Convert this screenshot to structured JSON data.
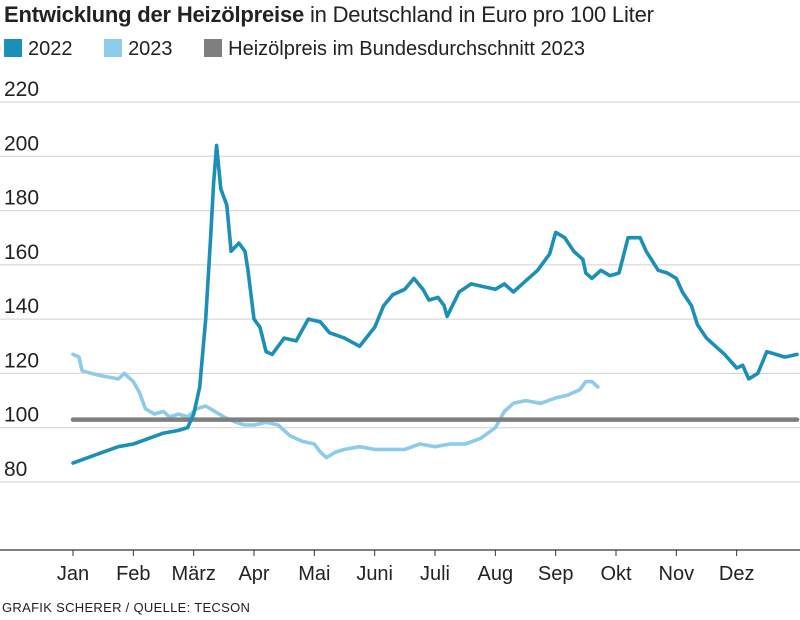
{
  "header": {
    "title_bold": "Entwicklung der Heizölpreise",
    "title_rest": " in Deutschland in Euro pro 100 Liter"
  },
  "legend": [
    {
      "label": "2022",
      "color": "#1b8fb8"
    },
    {
      "label": "2023",
      "color": "#8ccbe9"
    },
    {
      "label": "Heizölpreis im Bundesdurchschnitt 2023",
      "color": "#7f7f7f"
    }
  ],
  "footer": {
    "source": "GRAFIK SCHERER / QUELLE: TECSON"
  },
  "chart_data": {
    "type": "line",
    "title": "Entwicklung der Heizölpreise in Deutschland in Euro pro 100 Liter",
    "xlabel": "",
    "ylabel": "Euro pro 100 Liter",
    "x_unit": "month (0 = Jan 1, 12 = Dec 31)",
    "xlim": [
      0,
      12
    ],
    "ylim": [
      60,
      225
    ],
    "yticks": [
      80,
      100,
      120,
      140,
      160,
      180,
      200,
      220
    ],
    "month_labels": [
      "Jan",
      "Feb",
      "März",
      "Apr",
      "Mai",
      "Juni",
      "Juli",
      "Aug",
      "Sep",
      "Okt",
      "Nov",
      "Dez"
    ],
    "grid": "horizontal",
    "series": [
      {
        "name": "2022",
        "color": "#1b8fb8",
        "points": [
          [
            0.0,
            87
          ],
          [
            0.25,
            89
          ],
          [
            0.5,
            91
          ],
          [
            0.75,
            93
          ],
          [
            1.0,
            94
          ],
          [
            1.25,
            96
          ],
          [
            1.5,
            98
          ],
          [
            1.75,
            99
          ],
          [
            1.9,
            100
          ],
          [
            2.0,
            105
          ],
          [
            2.1,
            115
          ],
          [
            2.2,
            140
          ],
          [
            2.28,
            170
          ],
          [
            2.33,
            190
          ],
          [
            2.38,
            204
          ],
          [
            2.45,
            188
          ],
          [
            2.55,
            182
          ],
          [
            2.62,
            165
          ],
          [
            2.75,
            168
          ],
          [
            2.85,
            165
          ],
          [
            2.9,
            158
          ],
          [
            3.0,
            140
          ],
          [
            3.1,
            137
          ],
          [
            3.2,
            128
          ],
          [
            3.3,
            127
          ],
          [
            3.5,
            133
          ],
          [
            3.7,
            132
          ],
          [
            3.9,
            140
          ],
          [
            4.1,
            139
          ],
          [
            4.25,
            135
          ],
          [
            4.5,
            133
          ],
          [
            4.75,
            130
          ],
          [
            5.0,
            137
          ],
          [
            5.15,
            145
          ],
          [
            5.3,
            149
          ],
          [
            5.5,
            151
          ],
          [
            5.65,
            155
          ],
          [
            5.8,
            151
          ],
          [
            5.9,
            147
          ],
          [
            6.05,
            148
          ],
          [
            6.15,
            145
          ],
          [
            6.2,
            141
          ],
          [
            6.4,
            150
          ],
          [
            6.6,
            153
          ],
          [
            6.8,
            152
          ],
          [
            7.0,
            151
          ],
          [
            7.15,
            153
          ],
          [
            7.3,
            150
          ],
          [
            7.5,
            154
          ],
          [
            7.7,
            158
          ],
          [
            7.9,
            164
          ],
          [
            8.0,
            172
          ],
          [
            8.15,
            170
          ],
          [
            8.3,
            165
          ],
          [
            8.45,
            162
          ],
          [
            8.5,
            157
          ],
          [
            8.6,
            155
          ],
          [
            8.75,
            158
          ],
          [
            8.9,
            156
          ],
          [
            9.05,
            157
          ],
          [
            9.2,
            170
          ],
          [
            9.4,
            170
          ],
          [
            9.5,
            165
          ],
          [
            9.7,
            158
          ],
          [
            9.85,
            157
          ],
          [
            10.0,
            155
          ],
          [
            10.1,
            150
          ],
          [
            10.25,
            145
          ],
          [
            10.35,
            138
          ],
          [
            10.5,
            133
          ],
          [
            10.65,
            130
          ],
          [
            10.8,
            127
          ],
          [
            11.0,
            122
          ],
          [
            11.1,
            123
          ],
          [
            11.2,
            118
          ],
          [
            11.35,
            120
          ],
          [
            11.5,
            128
          ],
          [
            11.65,
            127
          ],
          [
            11.8,
            126
          ],
          [
            12.0,
            127
          ]
        ]
      },
      {
        "name": "2023",
        "color": "#8ccbe9",
        "points": [
          [
            0.0,
            127
          ],
          [
            0.1,
            126
          ],
          [
            0.15,
            121
          ],
          [
            0.3,
            120
          ],
          [
            0.5,
            119
          ],
          [
            0.75,
            118
          ],
          [
            0.85,
            120
          ],
          [
            1.0,
            117
          ],
          [
            1.1,
            113
          ],
          [
            1.2,
            107
          ],
          [
            1.35,
            105
          ],
          [
            1.5,
            106
          ],
          [
            1.6,
            104
          ],
          [
            1.75,
            105
          ],
          [
            1.9,
            104
          ],
          [
            2.05,
            107
          ],
          [
            2.2,
            108
          ],
          [
            2.35,
            106
          ],
          [
            2.5,
            104
          ],
          [
            2.7,
            102
          ],
          [
            2.85,
            101
          ],
          [
            3.0,
            101
          ],
          [
            3.2,
            102
          ],
          [
            3.4,
            101
          ],
          [
            3.6,
            97
          ],
          [
            3.8,
            95
          ],
          [
            4.0,
            94
          ],
          [
            4.1,
            91
          ],
          [
            4.2,
            89
          ],
          [
            4.35,
            91
          ],
          [
            4.5,
            92
          ],
          [
            4.75,
            93
          ],
          [
            5.0,
            92
          ],
          [
            5.25,
            92
          ],
          [
            5.5,
            92
          ],
          [
            5.75,
            94
          ],
          [
            6.0,
            93
          ],
          [
            6.25,
            94
          ],
          [
            6.5,
            94
          ],
          [
            6.75,
            96
          ],
          [
            7.0,
            100
          ],
          [
            7.15,
            106
          ],
          [
            7.3,
            109
          ],
          [
            7.5,
            110
          ],
          [
            7.75,
            109
          ],
          [
            8.0,
            111
          ],
          [
            8.2,
            112
          ],
          [
            8.4,
            114
          ],
          [
            8.5,
            117
          ],
          [
            8.6,
            117
          ],
          [
            8.7,
            115
          ]
        ]
      },
      {
        "name": "Heizölpreis im Bundesdurchschnitt 2023",
        "color": "#7f7f7f",
        "points": [
          [
            0.0,
            103
          ],
          [
            12.0,
            103
          ]
        ]
      }
    ]
  }
}
